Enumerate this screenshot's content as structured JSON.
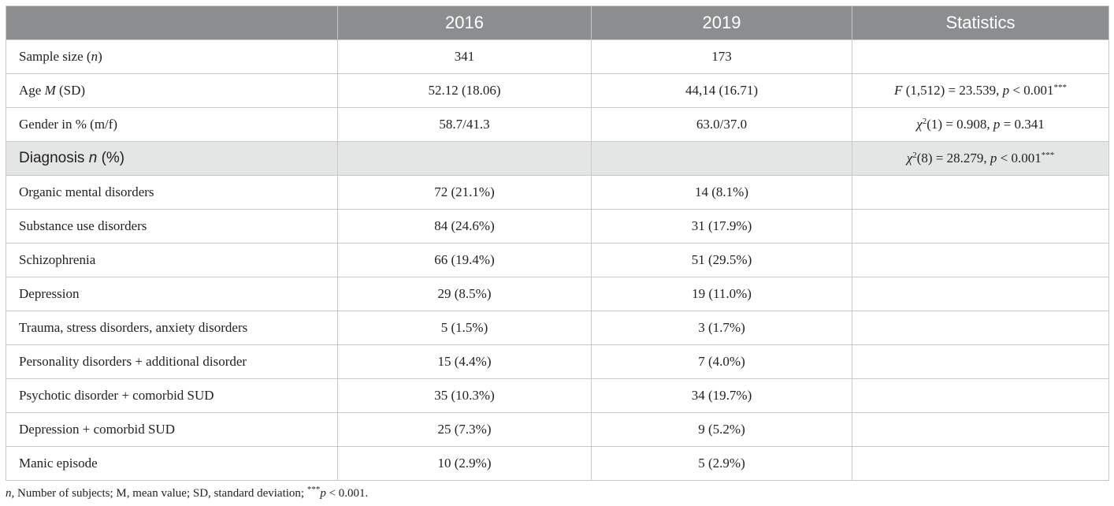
{
  "table": {
    "headers": [
      "2016",
      "2019",
      "Statistics"
    ],
    "rows": {
      "sample": {
        "label_pre": "Sample size (",
        "label_it": "n",
        "label_post": ")",
        "v2016": "341",
        "v2019": "173"
      },
      "age": {
        "label_pre": "Age ",
        "label_it": "M",
        "label_post": " (SD)",
        "v2016": "52.12 (18.06)",
        "v2019": "44,14 (16.71)",
        "stat": {
          "a_it": "F",
          "b": " (1,512) = 23.539, ",
          "c_it": "p",
          "d": " < 0.001",
          "sup": "***"
        }
      },
      "gender": {
        "label": "Gender in % (m/f)",
        "v2016": "58.7/41.3",
        "v2019": "63.0/37.0",
        "stat": {
          "a_it": "χ",
          "sup": "2",
          "b": "(1) = 0.908, ",
          "c_it": "p",
          "d": " = 0.341"
        }
      },
      "diagnosis": {
        "label_pre": "Diagnosis ",
        "label_it": "n",
        "label_post": " (%)",
        "stat": {
          "a_it": "χ",
          "sup1": "2",
          "b": "(8) = 28.279, ",
          "c_it": "p",
          "d": " < 0.001",
          "sup2": "***"
        }
      },
      "d1": {
        "label": "Organic mental disorders",
        "v2016": "72 (21.1%)",
        "v2019": "14 (8.1%)"
      },
      "d2": {
        "label": "Substance use disorders",
        "v2016": "84 (24.6%)",
        "v2019": "31 (17.9%)"
      },
      "d3": {
        "label": "Schizophrenia",
        "v2016": "66 (19.4%)",
        "v2019": "51 (29.5%)"
      },
      "d4": {
        "label": "Depression",
        "v2016": "29 (8.5%)",
        "v2019": "19 (11.0%)"
      },
      "d5": {
        "label": "Trauma, stress disorders, anxiety disorders",
        "v2016": "5 (1.5%)",
        "v2019": "3 (1.7%)"
      },
      "d6": {
        "label": "Personality disorders + additional disorder",
        "v2016": "15 (4.4%)",
        "v2019": "7 (4.0%)"
      },
      "d7": {
        "label": "Psychotic disorder + comorbid SUD",
        "v2016": "35 (10.3%)",
        "v2019": "34 (19.7%)"
      },
      "d8": {
        "label": "Depression + comorbid SUD",
        "v2016": "25 (7.3%)",
        "v2019": "9 (5.2%)"
      },
      "d9": {
        "label": "Manic episode",
        "v2016": "10 (2.9%)",
        "v2019": "5 (2.9%)"
      }
    }
  },
  "footnote": {
    "n_it": "n",
    "text": ", Number of subjects; M, mean value; SD, standard deviation; ",
    "sup": "***",
    "p_it": "p",
    "tail": " < 0.001."
  },
  "colors": {
    "header_bg": "#8c8d8e",
    "section_bg": "#e4e5e5",
    "border": "#c8c8c8",
    "text": "#222222"
  }
}
